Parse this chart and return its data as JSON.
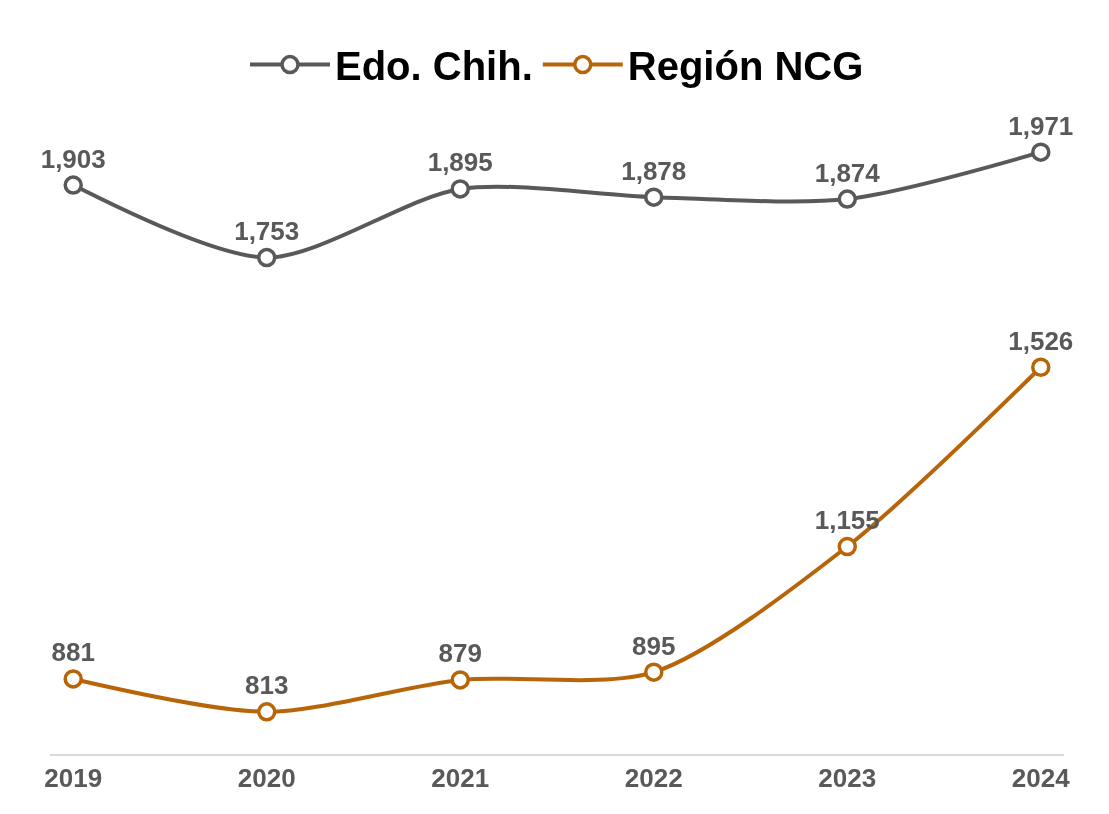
{
  "chart_data": {
    "type": "line",
    "categories": [
      "2019",
      "2020",
      "2021",
      "2022",
      "2023",
      "2024"
    ],
    "series": [
      {
        "name": "Edo. Chih.",
        "color": "#595959",
        "values": [
          1903,
          1753,
          1895,
          1878,
          1874,
          1971
        ],
        "value_labels": [
          "1,903",
          "1,753",
          "1,895",
          "1,878",
          "1,874",
          "1,971"
        ]
      },
      {
        "name": "Región NCG",
        "color": "#b8650a",
        "values": [
          881,
          813,
          879,
          895,
          1155,
          1526
        ],
        "value_labels": [
          "881",
          "813",
          "879",
          "895",
          "1,155",
          "1,526"
        ]
      }
    ],
    "marker": "circle",
    "line_style": "solid",
    "legend": "top",
    "tick_labels": "x"
  }
}
